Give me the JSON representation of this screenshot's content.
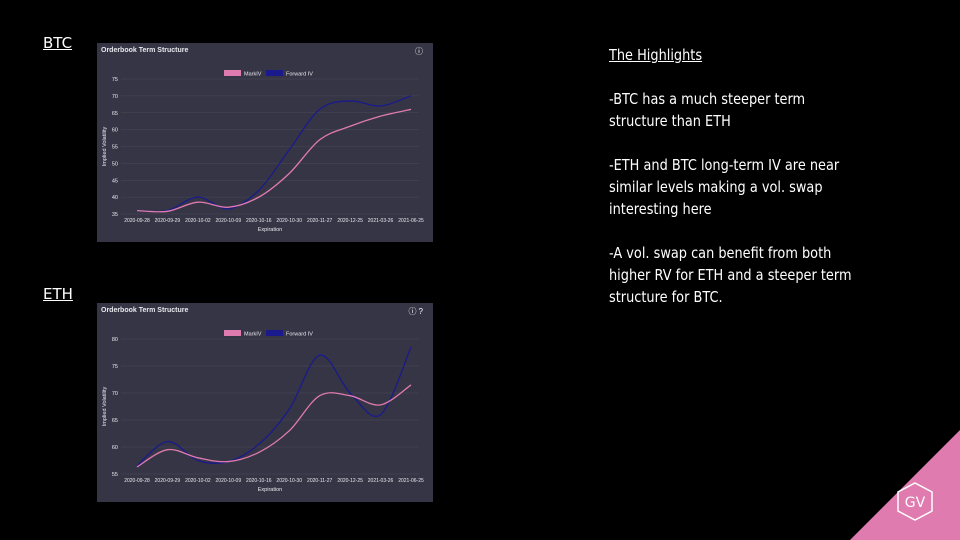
{
  "labels": {
    "btc": "BTC",
    "eth": "ETH"
  },
  "highlights": {
    "title": "The Highlights",
    "points": [
      "-BTC has a much steeper term structure than ETH",
      "-ETH and BTC long-term IV  are near similar levels making a vol. swap interesting here",
      "-A vol. swap can benefit from both higher RV for ETH and a steeper term structure for BTC."
    ]
  },
  "logo_text": "GV",
  "colors": {
    "mark_iv": "#e07bb0",
    "forward_iv": "#1a1a8c",
    "panel_bg": "#363545",
    "logo": "#e07bb0"
  },
  "icons": {
    "info": "info-icon",
    "help": "help-icon"
  },
  "chart_data": [
    {
      "type": "line",
      "title": "Orderbook Term Structure",
      "xlabel": "Expiration",
      "ylabel": "Implied Volatility",
      "categories": [
        "2020-09-28",
        "2020-09-29",
        "2020-10-02",
        "2020-10-09",
        "2020-10-16",
        "2020-10-30",
        "2020-11-27",
        "2020-12-25",
        "2021-03-26",
        "2021-06-25"
      ],
      "ylim": [
        35,
        75
      ],
      "yticks": [
        35,
        40,
        45,
        50,
        55,
        60,
        65,
        70,
        75
      ],
      "legend": "top-center",
      "grid": true,
      "series": [
        {
          "name": "MarkIV",
          "values": [
            36,
            35.8,
            38.5,
            37,
            40,
            47,
            57,
            61,
            64,
            66
          ]
        },
        {
          "name": "Forward IV",
          "values": [
            36,
            36,
            40,
            36.5,
            42,
            54,
            66,
            68.5,
            67,
            70
          ]
        }
      ]
    },
    {
      "type": "line",
      "title": "Orderbook Term Structure",
      "xlabel": "Expiration",
      "ylabel": "Implied Volatility",
      "categories": [
        "2020-09-28",
        "2020-09-29",
        "2020-10-02",
        "2020-10-09",
        "2020-10-16",
        "2020-10-30",
        "2020-11-27",
        "2020-12-25",
        "2021-03-26",
        "2021-06-25"
      ],
      "ylim": [
        55,
        80
      ],
      "yticks": [
        55,
        60,
        65,
        70,
        75,
        80
      ],
      "legend": "top-center",
      "grid": true,
      "series": [
        {
          "name": "MarkIV",
          "values": [
            56.3,
            59.5,
            58,
            57.3,
            59,
            63,
            69.5,
            69.5,
            67.8,
            71.5
          ]
        },
        {
          "name": "Forward IV",
          "values": [
            56.5,
            61,
            57.5,
            57.3,
            60.5,
            67,
            77,
            70,
            66,
            78.5
          ]
        }
      ]
    }
  ]
}
